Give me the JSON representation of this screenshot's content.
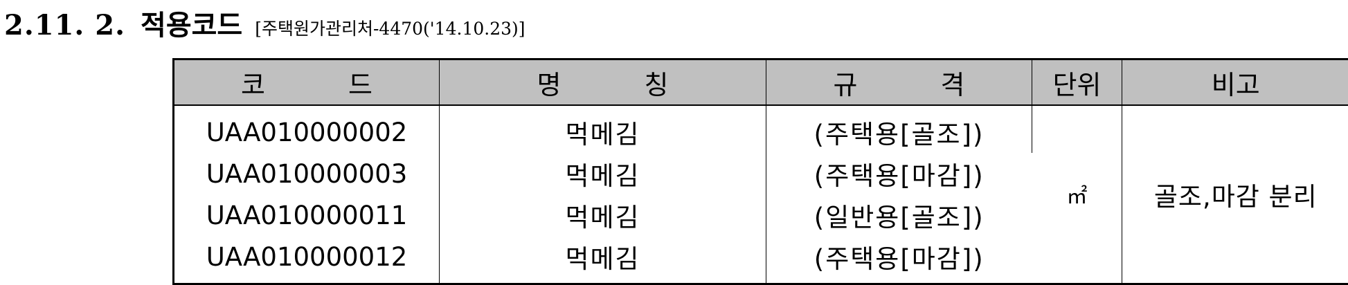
{
  "heading": {
    "number": "2.11. 2.",
    "title": "적용코드",
    "reference": "[주택원가관리처-4470('14.10.23)]"
  },
  "table": {
    "headers": {
      "code_a": "코",
      "code_b": "드",
      "name_a": "명",
      "name_b": "칭",
      "spec_a": "규",
      "spec_b": "격",
      "unit": "단위",
      "remark": "비고"
    },
    "rows": [
      {
        "code": "UAA010000002",
        "name": "먹메김",
        "spec": "(주택용[골조])"
      },
      {
        "code": "UAA010000003",
        "name": "먹메김",
        "spec": "(주택용[마감])"
      },
      {
        "code": "UAA010000011",
        "name": "먹메김",
        "spec": "(일반용[골조])"
      },
      {
        "code": "UAA010000012",
        "name": "먹메김",
        "spec": "(주택용[마감])"
      }
    ],
    "unit": "㎡",
    "remark": "골조,마감 분리"
  }
}
